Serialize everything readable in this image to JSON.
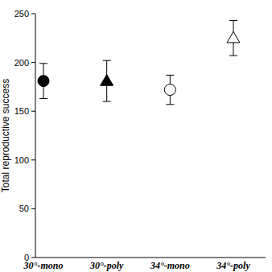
{
  "chart_data": {
    "type": "scatter",
    "y_label": "Total reproductive success",
    "categories": [
      "30°-mono",
      "30°-poly",
      "34°-mono",
      "34°-poly"
    ],
    "series": [
      {
        "marker": "circle",
        "color": "#000000",
        "values": [
          181,
          null,
          null,
          null
        ],
        "errors": [
          18,
          null,
          null,
          null
        ]
      },
      {
        "marker": "triangle",
        "color": "#000000",
        "values": [
          null,
          181,
          null,
          null
        ],
        "errors": [
          null,
          21,
          null,
          null
        ]
      },
      {
        "marker": "circle",
        "color": "#ffffff",
        "values": [
          null,
          null,
          172,
          null
        ],
        "errors": [
          null,
          null,
          15,
          null
        ]
      },
      {
        "marker": "triangle",
        "color": "#ffffff",
        "values": [
          null,
          null,
          null,
          225
        ],
        "errors": [
          null,
          null,
          null,
          18
        ]
      }
    ],
    "ylim": [
      0,
      250
    ],
    "yticks": [
      0,
      50,
      100,
      150,
      200,
      250
    ],
    "grid": false
  }
}
